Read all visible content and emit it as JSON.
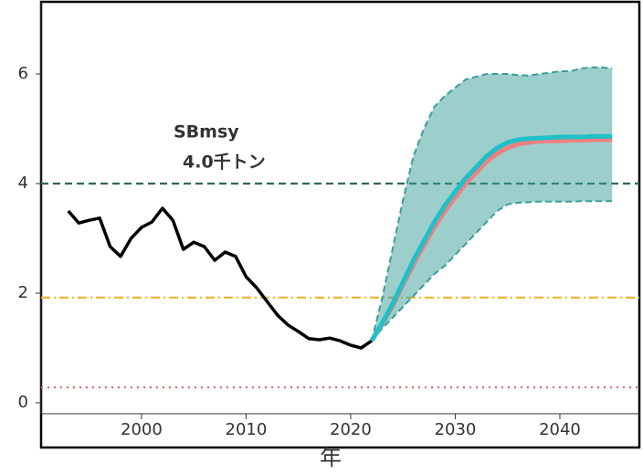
{
  "chart_data": {
    "type": "line",
    "x_label": "年",
    "annotations": [
      "SBmsy",
      "4.0千トン"
    ],
    "xlim": [
      1990.4,
      2047.6
    ],
    "ylim": [
      -0.2,
      7.0
    ],
    "xticks": [
      2000,
      2010,
      2020,
      2030,
      2040
    ],
    "yticks": [
      0,
      2,
      4,
      6
    ],
    "hlines": [
      {
        "value": 4.0,
        "color": "#2e6b4f",
        "style": "dashed"
      },
      {
        "value": 1.92,
        "color": "#f0b429",
        "style": "dashdot"
      },
      {
        "value": 0.28,
        "color": "#e06666",
        "style": "dotted"
      }
    ],
    "band": {
      "color": "#3a9e9a",
      "x": [
        2022,
        2023,
        2024,
        2025,
        2026,
        2027,
        2028,
        2029,
        2030,
        2031,
        2032,
        2033,
        2034,
        2035,
        2036,
        2037,
        2038,
        2039,
        2040,
        2041,
        2042,
        2043,
        2044,
        2045
      ],
      "upper": [
        1.13,
        1.9,
        2.8,
        3.7,
        4.5,
        5.0,
        5.4,
        5.6,
        5.75,
        5.9,
        5.95,
        6.0,
        6.0,
        6.0,
        5.98,
        5.97,
        6.0,
        6.02,
        6.05,
        6.05,
        6.1,
        6.12,
        6.12,
        6.1
      ],
      "lower": [
        1.13,
        1.35,
        1.55,
        1.75,
        1.95,
        2.15,
        2.35,
        2.5,
        2.7,
        2.9,
        3.1,
        3.3,
        3.5,
        3.62,
        3.65,
        3.66,
        3.67,
        3.67,
        3.67,
        3.67,
        3.68,
        3.68,
        3.68,
        3.68
      ]
    },
    "series": [
      {
        "color": "#000000",
        "x": [
          1993,
          1994,
          1995,
          1996,
          1997,
          1998,
          1999,
          2000,
          2001,
          2002,
          2003,
          2004,
          2005,
          2006,
          2007,
          2008,
          2009,
          2010,
          2011,
          2012,
          2013,
          2014,
          2015,
          2016,
          2017,
          2018,
          2019,
          2020,
          2021,
          2022
        ],
        "values": [
          3.5,
          3.28,
          3.33,
          3.37,
          2.85,
          2.67,
          3.0,
          3.2,
          3.3,
          3.55,
          3.33,
          2.8,
          2.93,
          2.85,
          2.6,
          2.75,
          2.67,
          2.3,
          2.1,
          1.85,
          1.6,
          1.42,
          1.3,
          1.17,
          1.15,
          1.18,
          1.13,
          1.05,
          1.0,
          1.13
        ]
      },
      {
        "color": "#f08080",
        "x": [
          2022,
          2023,
          2024,
          2025,
          2026,
          2027,
          2028,
          2029,
          2030,
          2031,
          2032,
          2033,
          2034,
          2035,
          2036,
          2037,
          2038,
          2039,
          2040,
          2041,
          2042,
          2043,
          2044,
          2045
        ],
        "values": [
          1.13,
          1.43,
          1.76,
          2.15,
          2.52,
          2.87,
          3.2,
          3.5,
          3.75,
          4.0,
          4.2,
          4.4,
          4.55,
          4.65,
          4.72,
          4.75,
          4.77,
          4.78,
          4.78,
          4.79,
          4.79,
          4.8,
          4.8,
          4.8
        ]
      },
      {
        "color": "#1fc0c8",
        "x": [
          2022,
          2023,
          2024,
          2025,
          2026,
          2027,
          2028,
          2029,
          2030,
          2031,
          2032,
          2033,
          2034,
          2035,
          2036,
          2037,
          2038,
          2039,
          2040,
          2041,
          2042,
          2043,
          2044,
          2045
        ],
        "values": [
          1.13,
          1.45,
          1.8,
          2.2,
          2.6,
          2.95,
          3.3,
          3.6,
          3.85,
          4.1,
          4.3,
          4.5,
          4.65,
          4.75,
          4.8,
          4.82,
          4.83,
          4.84,
          4.85,
          4.85,
          4.85,
          4.86,
          4.86,
          4.86
        ]
      }
    ]
  }
}
